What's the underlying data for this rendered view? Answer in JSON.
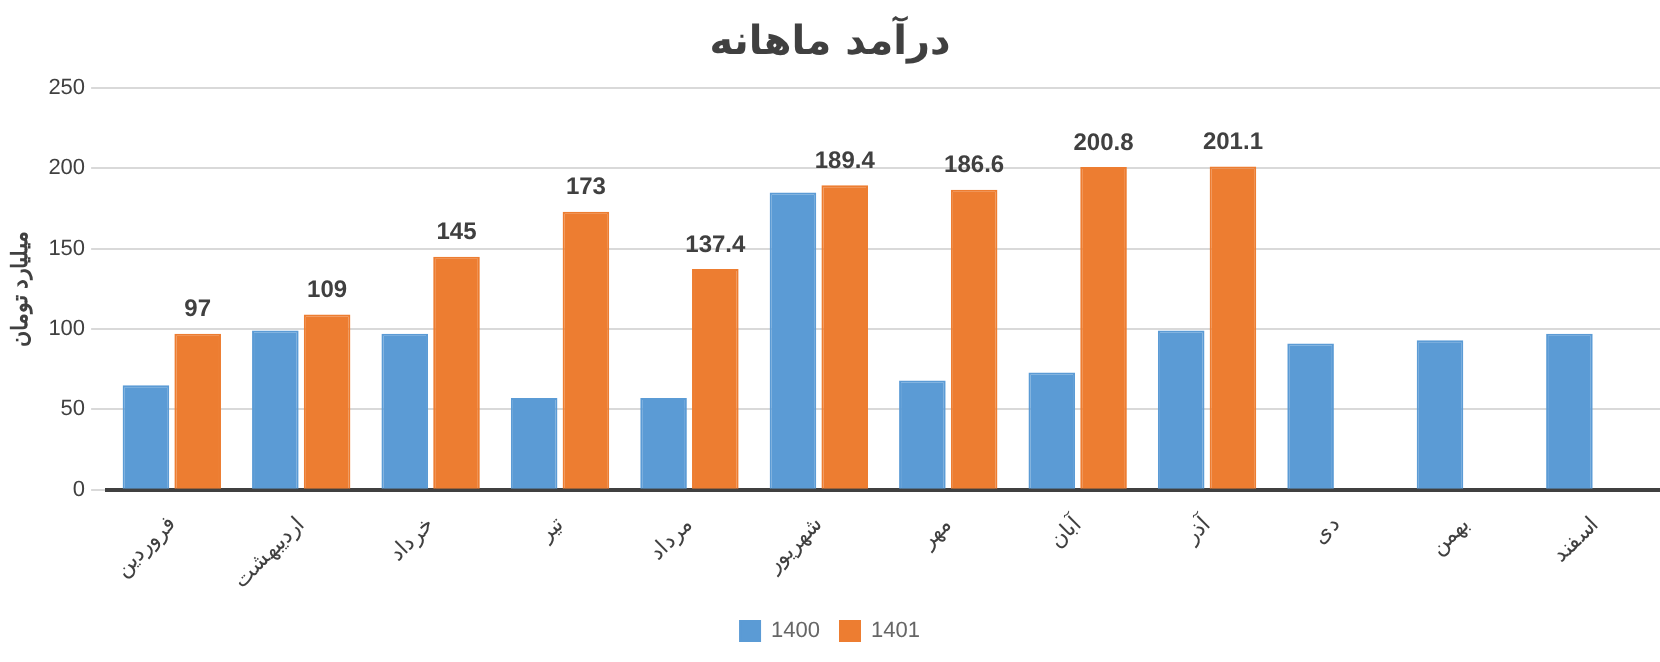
{
  "chart_data": {
    "type": "bar",
    "title": "درآمد ماهانه",
    "ylabel": "میلیارد تومان",
    "categories": [
      "فروردین",
      "اردیبهشت",
      "خرداد",
      "تیر",
      "مرداد",
      "شهریور",
      "مهر",
      "آبان",
      "آذر",
      "دی",
      "بهمن",
      "اسفند"
    ],
    "series": [
      {
        "name": "1400",
        "color": "#5b9bd5",
        "values": [
          65,
          99,
          97,
          57,
          57,
          185,
          68,
          73,
          99,
          91,
          93,
          97
        ]
      },
      {
        "name": "1401",
        "color": "#ed7d31",
        "values": [
          97,
          109,
          145,
          173,
          137.4,
          189.4,
          186.6,
          200.8,
          201.1,
          null,
          null,
          null
        ],
        "value_labels": [
          "97",
          "109",
          "145",
          "173",
          "137.4",
          "189.4",
          "186.6",
          "200.8",
          "201.1",
          null,
          null,
          null
        ]
      }
    ],
    "ylim": [
      0,
      250
    ],
    "yticks": [
      0,
      50,
      100,
      150,
      200,
      250
    ],
    "grid": "y",
    "legend": "bottom"
  }
}
